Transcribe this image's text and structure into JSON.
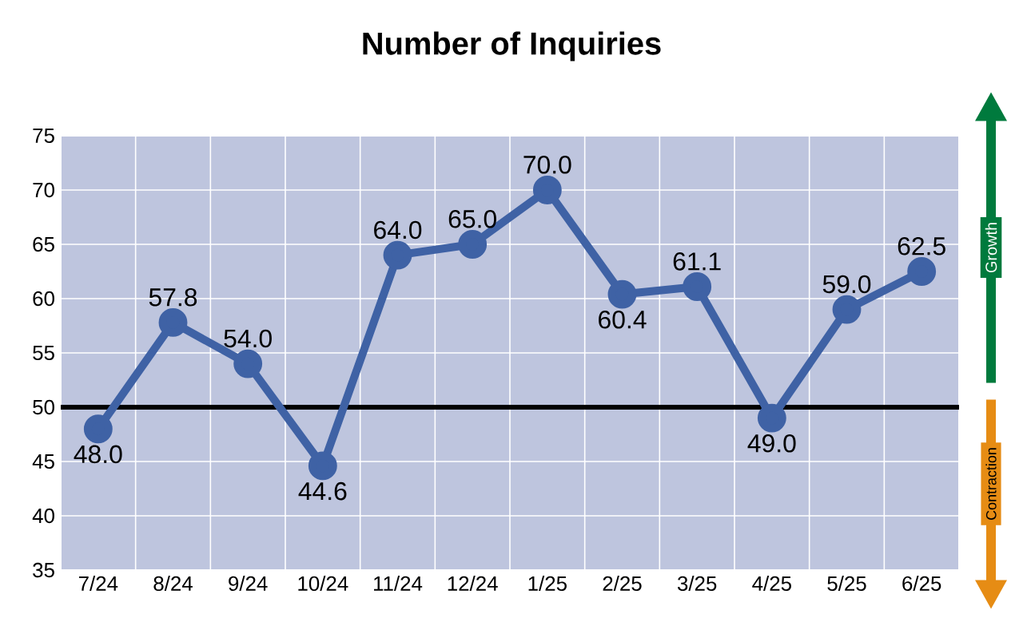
{
  "chart_data": {
    "type": "line",
    "title": "Number of Inquiries",
    "categories": [
      "7/24",
      "8/24",
      "9/24",
      "10/24",
      "11/24",
      "12/24",
      "1/25",
      "2/25",
      "3/25",
      "4/25",
      "5/25",
      "6/25"
    ],
    "values": [
      48.0,
      57.8,
      54.0,
      44.6,
      64.0,
      65.0,
      70.0,
      60.4,
      61.1,
      49.0,
      59.0,
      62.5
    ],
    "value_labels": [
      "48.0",
      "57.8",
      "54.0",
      "44.6",
      "64.0",
      "65.0",
      "70.0",
      "60.4",
      "61.1",
      "49.0",
      "59.0",
      "62.5"
    ],
    "color": "#3f62a5",
    "marker": "circle",
    "grid": true,
    "ylim": [
      35,
      75
    ],
    "yticks": [
      35,
      40,
      45,
      50,
      55,
      60,
      65,
      70,
      75
    ],
    "ref_lines": [
      {
        "axis": "y",
        "value": 50,
        "color": "#000000"
      }
    ],
    "annotations": [
      "Growth",
      "Contraction"
    ]
  }
}
